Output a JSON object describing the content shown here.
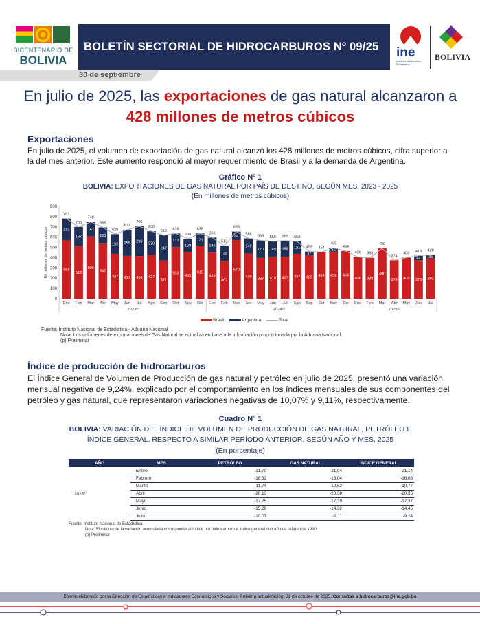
{
  "header": {
    "bicentenario_line1": "BICENTENARIO DE",
    "bicentenario_line2": "BOLIVIA",
    "banner_title": "BOLETÍN SECTORIAL DE HIDROCARBUROS Nº 09/25",
    "ine_logo_text": "ine",
    "ine_sub": "Instituto Nacional de Estadística",
    "seal_text": "BOLIVIA",
    "date": "30 de septiembre"
  },
  "headline": {
    "p1": "En julio de 2025, las ",
    "h1": "exportaciones",
    "p2": " de gas natural alcanzaron a ",
    "h2": "428 millones de metros cúbicos"
  },
  "section1": {
    "heading": "Exportaciones",
    "text": "En julio de 2025, el volumen de exportación de gas natural alcanzó los 428 millones de metros cúbicos, cifra superior a la del mes anterior. Este aumento respondió al mayor requerimiento de Brasil y a la demanda de Argentina."
  },
  "chart_data": {
    "type": "bar",
    "stacked": true,
    "label": "Gráfico Nº 1",
    "title_bold": "BOLIVIA:",
    "title": "EXPORTACIONES DE GAS NATURAL POR PAÍS DE DESTINO, SEGÚN MES, 2023 - 2025",
    "subtitle": "(En millones de metros cúbicos)",
    "ylabel": "En millones de metros cúbicos",
    "ylim": [
      0,
      900
    ],
    "yticks": [
      0,
      100,
      200,
      300,
      400,
      500,
      600,
      700,
      800,
      900
    ],
    "categories": [
      "Ene",
      "Feb",
      "Mar",
      "Abr",
      "May",
      "Jun",
      "Jul",
      "Ago",
      "Sep",
      "Oct",
      "Nov",
      "Dic",
      "Ene",
      "Feb",
      "Mar",
      "Abr",
      "May",
      "Jun",
      "Jul",
      "Ago",
      "Sep",
      "Oct",
      "Nov",
      "Dic",
      "Ene",
      "Feb",
      "Mar",
      "Abr",
      "May",
      "Jun",
      "Jul"
    ],
    "groups": [
      {
        "label": "2023",
        "sup": "(p)",
        "count": 12
      },
      {
        "label": "2024",
        "sup": "(p)",
        "count": 12
      },
      {
        "label": "2025",
        "sup": "(p)",
        "count": 7
      }
    ],
    "series": [
      {
        "name": "Brasil",
        "color": "#cc2020",
        "values": [
          568,
          513,
          606,
          542,
          437,
          417,
          416,
          427,
          371,
          503,
          455,
          515,
          449,
          367,
          570,
          439,
          397,
          410,
          407,
          437,
          422,
          454,
          459,
          464,
          406,
          398,
          490,
          374,
          400,
          375,
          393
        ]
      },
      {
        "name": "Argentina",
        "color": "#1f3058",
        "values": [
          213,
          187,
          142,
          153,
          192,
          255,
          290,
          230,
          247,
          133,
          129,
          121,
          146,
          146,
          84,
          149,
          170,
          149,
          158,
          121,
          37,
          0,
          36,
          0,
          0,
          0,
          0,
          0,
          0,
          44,
          35
        ]
      },
      {
        "name": "Total",
        "color": "#b0b0b0",
        "type": "line",
        "values": [
          781,
          700,
          748,
          695,
          629,
          672,
          706,
          658,
          618,
          636,
          584,
          636,
          596,
          513,
          655,
          588,
          568,
          559,
          565,
          558,
          459,
          454,
          495,
          464,
          406,
          398,
          490,
          374,
          400,
          418,
          428
        ]
      }
    ],
    "legend": "bottom",
    "source": "Fuente: Instituto Nacional de Estadística - Aduana Nacional",
    "note": "Nota:  Los volúmenes de exportaciones de Gas Natural se actualiza en base a la información proporcionada por la Aduana Nacional.",
    "prelim": "(p) Preliminar"
  },
  "section2": {
    "heading": "Índice de producción de hidrocarburos",
    "text": "El Índice General de Volumen de Producción de gas natural y petróleo en julio de 2025, presentó una variación mensual negativa de 9,24%, explicado por el comportamiento en los índices mensuales de sus componentes del petróleo y gas natural, que representaron variaciones negativas de 10,07% y 9,11%, respectivamente."
  },
  "table": {
    "label": "Cuadro Nº 1",
    "title_bold": "BOLIVIA:",
    "title": "VARIACIÓN DEL ÍNDICE DE VOLUMEN DE PRODUCCIÓN DE GAS NATURAL, PETRÓLEO E ÍNDICE GENERAL, RESPECTO A SIMILAR PERÍODO ANTERIOR, SEGÚN AÑO Y MES, 2025",
    "subtitle": "(En porcentaje)",
    "headers": [
      "AÑO",
      "MES",
      "PETRÓLEO",
      "GAS NATURAL",
      "ÍNDICE GENERAL"
    ],
    "year": "2025",
    "year_sup": "(p)",
    "rows": [
      [
        "Enero",
        "-21,79",
        "-21,04",
        "-21,14"
      ],
      [
        "Febrero",
        "-16,32",
        "-16,04",
        "-16,08"
      ],
      [
        "Marzo",
        "-11,74",
        "-10,62",
        "-10,77"
      ],
      [
        "Abril",
        "-20,13",
        "-20,38",
        "-20,35"
      ],
      [
        "Mayo",
        "-17,25",
        "-17,39",
        "-17,37"
      ],
      [
        "Junio",
        "-15,29",
        "-14,32",
        "-14,45"
      ],
      [
        "Julio",
        "-10,07",
        "-9,11",
        "-9,24"
      ]
    ],
    "source": "Fuente: Instituto Nacional de Estadística",
    "note": "Nota: El cálculo de la variación acumulada corresponde al índice por hidrocarburo e índice general con año de referencia 1990.",
    "prelim": "(p) Preliminar"
  },
  "footer": {
    "text": "Boletín elaborado por la Dirección de Estadísticas e Indicadores Económicos y Sociales. Próxima actualización: 31 de octubre de 2025. ",
    "contact": "Consultas a hidrocarburos@ine.gob.bo"
  }
}
